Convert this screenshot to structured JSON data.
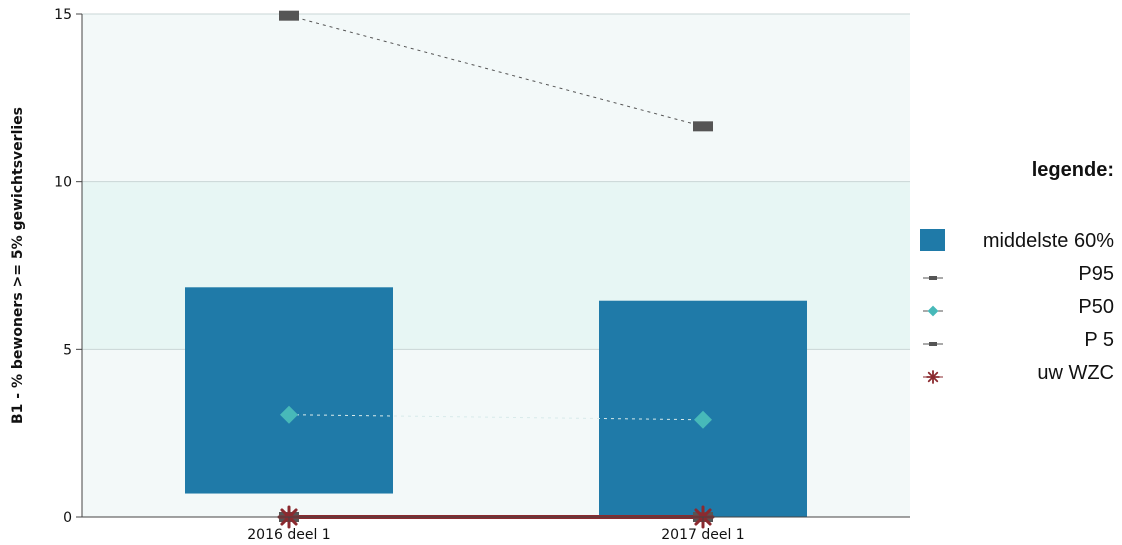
{
  "chart_data": {
    "type": "bar",
    "ylabel": "B1 - % bewoners >= 5% gewichtsverlies",
    "xlabel": "",
    "ylim": [
      0,
      15
    ],
    "yticks": [
      0,
      5,
      10,
      15
    ],
    "categories": [
      "2016 deel 1",
      "2017 deel 1"
    ],
    "background_bands": [
      {
        "from": 0,
        "to": 5,
        "color": "#f3f9f9"
      },
      {
        "from": 5,
        "to": 10,
        "color": "#e7f6f4"
      },
      {
        "from": 10,
        "to": 15,
        "color": "#f3f9f9"
      }
    ],
    "series": [
      {
        "name": "middelste 60%",
        "kind": "range-bar",
        "color": "#1f7aa8",
        "low": [
          0.7,
          0.0
        ],
        "high": [
          6.85,
          6.45
        ]
      },
      {
        "name": "P95",
        "kind": "line-marker",
        "marker": "rect",
        "color": "#555555",
        "values": [
          14.95,
          11.65
        ]
      },
      {
        "name": "P50",
        "kind": "line-marker",
        "marker": "diamond",
        "color": "#47b9b9",
        "values": [
          3.05,
          2.9
        ]
      },
      {
        "name": "P 5",
        "kind": "line-marker",
        "marker": "rect",
        "color": "#555555",
        "values": [
          0.0,
          0.0
        ]
      },
      {
        "name": "uw WZC",
        "kind": "line-marker",
        "marker": "star",
        "color": "#8b2a2f",
        "values": [
          0.0,
          0.0
        ]
      }
    ],
    "legend": {
      "title": "legende:",
      "placement": "right"
    },
    "grid": true
  }
}
